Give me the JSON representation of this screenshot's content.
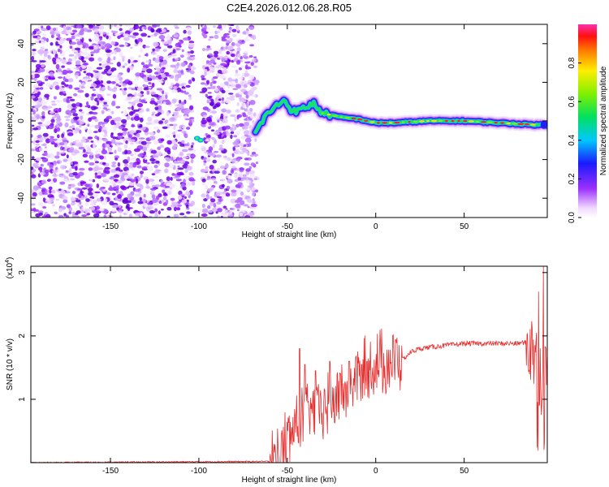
{
  "title": "C2E4.2026.012.06.28.R05",
  "chart_data": [
    {
      "type": "heatmap",
      "xlabel": "Height of straight line (km)",
      "ylabel": "Frequency (Hz)",
      "xlim": [
        -195,
        97
      ],
      "ylim": [
        -50,
        50
      ],
      "xticks": [
        -150,
        -100,
        -50,
        0,
        50
      ],
      "yticks": [
        40,
        20,
        0,
        -20,
        -40
      ],
      "colorbar": {
        "label": "Normalized spectral amplitude",
        "range": [
          0,
          1
        ],
        "ticks": [
          "0.0",
          "0.2",
          "0.4",
          "0.6",
          "0.8"
        ],
        "colormap": "rainbow"
      },
      "features": {
        "noise_region_x": [
          -195,
          -67
        ],
        "gap_x": [
          -103,
          -98
        ],
        "ridge": [
          [
            -68,
            -6
          ],
          [
            -62,
            3
          ],
          [
            -57,
            7
          ],
          [
            -52,
            11
          ],
          [
            -48,
            6
          ],
          [
            -44,
            5
          ],
          [
            -40,
            7
          ],
          [
            -35,
            9
          ],
          [
            -30,
            4
          ],
          [
            -20,
            2
          ],
          [
            -10,
            1
          ],
          [
            0,
            -1
          ],
          [
            10,
            -1
          ],
          [
            30,
            0
          ],
          [
            50,
            0
          ],
          [
            70,
            -1
          ],
          [
            90,
            -2
          ],
          [
            97,
            -2
          ]
        ]
      }
    },
    {
      "type": "line",
      "xlabel": "Height of straight line (km)",
      "ylabel": "SNR (10 * v/v)",
      "multiplier": "(x10",
      "multiplier_exp": "4",
      "multiplier_close": ")",
      "xlim": [
        -195,
        97
      ],
      "ylim": [
        0,
        3.1
      ],
      "xticks": [
        -150,
        -100,
        -50,
        0,
        50
      ],
      "yticks": [
        1,
        2,
        3
      ],
      "color": "#e53030",
      "envelope": [
        [
          -195,
          0.0
        ],
        [
          -60,
          0.02
        ],
        [
          -55,
          0.1
        ],
        [
          -50,
          0.35
        ],
        [
          -45,
          0.6
        ],
        [
          -40,
          0.75
        ],
        [
          -35,
          0.8
        ],
        [
          -30,
          0.85
        ],
        [
          -25,
          0.95
        ],
        [
          -20,
          1.05
        ],
        [
          -15,
          1.2
        ],
        [
          -10,
          1.4
        ],
        [
          -5,
          1.45
        ],
        [
          0,
          1.55
        ],
        [
          5,
          1.6
        ],
        [
          10,
          1.6
        ],
        [
          15,
          1.62
        ],
        [
          20,
          1.75
        ],
        [
          25,
          1.8
        ],
        [
          30,
          1.82
        ],
        [
          40,
          1.85
        ],
        [
          50,
          1.88
        ],
        [
          60,
          1.88
        ],
        [
          70,
          1.88
        ],
        [
          80,
          1.88
        ],
        [
          85,
          1.9
        ],
        [
          90,
          1.7
        ],
        [
          95,
          1.2
        ],
        [
          97,
          1.5
        ]
      ],
      "peaks": [
        [
          -43,
          1.8
        ],
        [
          -40,
          1.55
        ],
        [
          -34,
          1.45
        ],
        [
          -26,
          1.6
        ],
        [
          -20,
          1.4
        ],
        [
          -15,
          1.6
        ],
        [
          -8,
          1.55
        ],
        [
          -5,
          1.6
        ],
        [
          92,
          2.7
        ],
        [
          95,
          3.1
        ]
      ]
    }
  ]
}
